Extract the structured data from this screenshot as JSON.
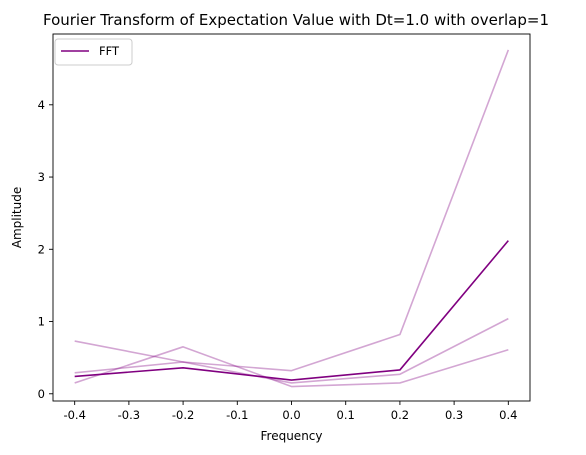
{
  "chart_data": {
    "type": "line",
    "title": "Fourier Transform of Expectation Value with Dt=1.0 with overlap=1",
    "xlabel": "Frequency",
    "ylabel": "Amplitude",
    "x": [
      -0.4,
      -0.2,
      0.0,
      0.2,
      0.4
    ],
    "xlim": [
      -0.44,
      0.44
    ],
    "ylim": [
      -0.1,
      4.98
    ],
    "xticks": [
      "-0.4",
      "-0.3",
      "-0.2",
      "-0.1",
      "0.0",
      "0.1",
      "0.2",
      "0.3",
      "0.4"
    ],
    "yticks": [
      "0",
      "1",
      "2",
      "3",
      "4"
    ],
    "grid": false,
    "legend": {
      "placement": "top-left",
      "entries": [
        "FFT"
      ]
    },
    "series": [
      {
        "name": "FFT",
        "color": "#800080",
        "opacity": 1.0,
        "values": [
          0.24,
          0.36,
          0.19,
          0.33,
          2.12
        ]
      },
      {
        "color": "#800080",
        "opacity": 0.35,
        "values": [
          0.29,
          0.44,
          0.32,
          0.82,
          4.76
        ]
      },
      {
        "color": "#800080",
        "opacity": 0.35,
        "values": [
          0.15,
          0.65,
          0.1,
          0.15,
          0.61
        ]
      },
      {
        "color": "#800080",
        "opacity": 0.35,
        "values": [
          0.73,
          0.44,
          0.15,
          0.27,
          1.04
        ]
      }
    ]
  }
}
